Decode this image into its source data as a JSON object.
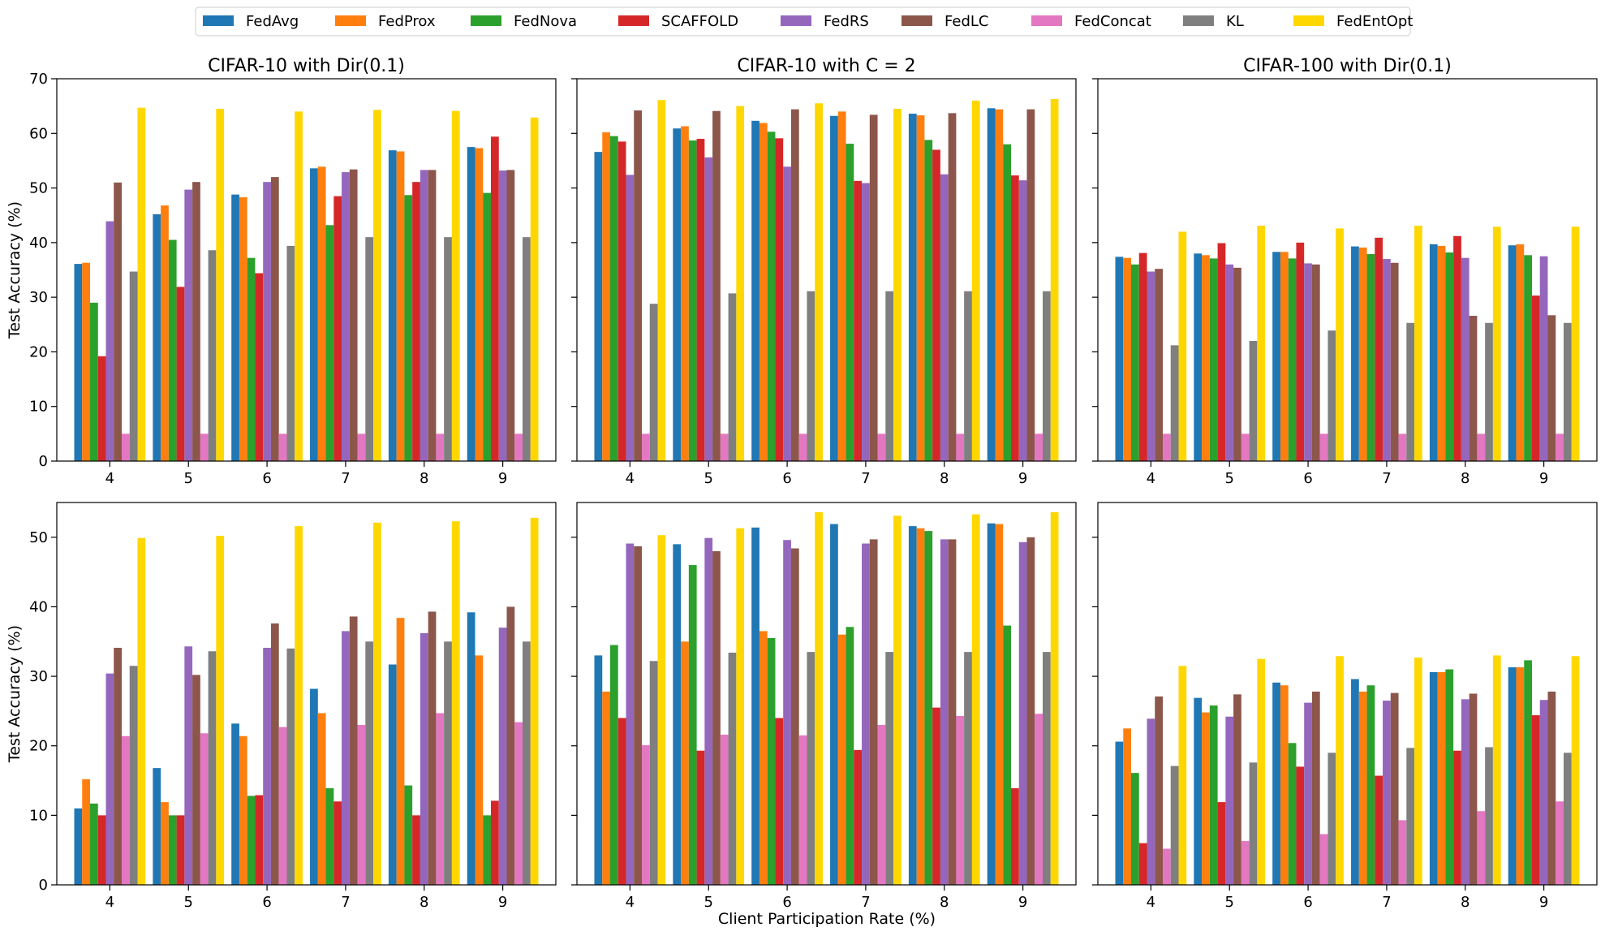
{
  "chart_data": {
    "type": "bar",
    "xlabel": "Client Participation Rate (%)",
    "ylabel": "Test Accuracy (%)",
    "legend_position": "top-center",
    "series": [
      {
        "name": "FedAvg",
        "color": "#1f77b4"
      },
      {
        "name": "FedProx",
        "color": "#ff7f0e"
      },
      {
        "name": "FedNova",
        "color": "#2ca02c"
      },
      {
        "name": "SCAFFOLD",
        "color": "#d62728"
      },
      {
        "name": "FedRS",
        "color": "#9467bd"
      },
      {
        "name": "FedLC",
        "color": "#8c564b"
      },
      {
        "name": "FedConcat",
        "color": "#e377c2"
      },
      {
        "name": "KL",
        "color": "#7f7f7f"
      },
      {
        "name": "FedEntOpt",
        "color": "#ffd700"
      }
    ],
    "categories": [
      "4",
      "5",
      "6",
      "7",
      "8",
      "9"
    ],
    "column_titles": [
      "CIFAR-10 with Dir(0.1)",
      "CIFAR-10 with C = 2",
      "CIFAR-100 with Dir(0.1)"
    ],
    "rows": [
      {
        "ylim": [
          0,
          70
        ],
        "yticks": [
          0,
          10,
          20,
          30,
          40,
          50,
          60,
          70
        ]
      },
      {
        "ylim": [
          0,
          55
        ],
        "yticks": [
          0,
          10,
          20,
          30,
          40,
          50
        ]
      }
    ],
    "panels": [
      {
        "title": "CIFAR-10 with Dir(0.1)",
        "values": [
          [
            36.1,
            45.2,
            48.8,
            53.6,
            56.9,
            57.5
          ],
          [
            36.3,
            46.8,
            48.3,
            53.9,
            56.7,
            57.3
          ],
          [
            29.0,
            40.5,
            37.2,
            43.2,
            48.7,
            49.1
          ],
          [
            19.2,
            31.9,
            34.4,
            48.5,
            51.1,
            59.4
          ],
          [
            43.9,
            49.7,
            51.1,
            52.9,
            53.3,
            53.2
          ],
          [
            51.0,
            51.1,
            52.0,
            53.4,
            53.3,
            53.3
          ],
          [
            5.0,
            5.0,
            5.0,
            5.0,
            5.0,
            5.0
          ],
          [
            34.7,
            38.6,
            39.4,
            41.0,
            41.0,
            41.0
          ],
          [
            64.7,
            64.5,
            64.0,
            64.3,
            64.1,
            62.9
          ]
        ]
      },
      {
        "title": "CIFAR-10 with C = 2",
        "values": [
          [
            56.6,
            60.9,
            62.3,
            63.2,
            63.6,
            64.6
          ],
          [
            60.2,
            61.3,
            61.9,
            64.0,
            63.3,
            64.4
          ],
          [
            59.5,
            58.7,
            60.3,
            58.1,
            58.8,
            58.0
          ],
          [
            58.5,
            59.0,
            59.1,
            51.3,
            57.0,
            52.3
          ],
          [
            52.4,
            55.6,
            53.9,
            50.9,
            52.5,
            51.4
          ],
          [
            64.2,
            64.1,
            64.4,
            63.4,
            63.7,
            64.4
          ],
          [
            5.0,
            5.0,
            5.0,
            5.0,
            5.0,
            5.0
          ],
          [
            28.8,
            30.7,
            31.1,
            31.1,
            31.1,
            31.1
          ],
          [
            66.1,
            65.0,
            65.5,
            64.5,
            66.0,
            66.3
          ]
        ]
      },
      {
        "title": "CIFAR-100 with Dir(0.1)",
        "values": [
          [
            37.4,
            38.0,
            38.3,
            39.3,
            39.7,
            39.5
          ],
          [
            37.2,
            37.7,
            38.3,
            39.1,
            39.4,
            39.7
          ],
          [
            36.0,
            37.1,
            37.1,
            37.9,
            38.2,
            37.7
          ],
          [
            38.1,
            39.9,
            40.0,
            40.9,
            41.2,
            30.3
          ],
          [
            34.7,
            36.0,
            36.2,
            37.0,
            37.2,
            37.5
          ],
          [
            35.2,
            35.4,
            36.0,
            36.3,
            26.6,
            26.7
          ],
          [
            5.0,
            5.0,
            5.0,
            5.0,
            5.0,
            5.0
          ],
          [
            21.2,
            22.0,
            23.9,
            25.3,
            25.3,
            25.3
          ],
          [
            42.0,
            43.1,
            42.6,
            43.1,
            42.9,
            42.9
          ]
        ]
      },
      {
        "title": "",
        "values": [
          [
            11.0,
            16.8,
            23.2,
            28.2,
            31.7,
            39.2
          ],
          [
            15.2,
            11.9,
            21.4,
            24.7,
            38.4,
            33.0
          ],
          [
            11.7,
            10.0,
            12.8,
            13.9,
            14.3,
            10.0
          ],
          [
            10.0,
            10.0,
            12.9,
            12.0,
            10.0,
            12.1
          ],
          [
            30.4,
            34.3,
            34.1,
            36.5,
            36.2,
            37.0
          ],
          [
            34.1,
            30.2,
            37.6,
            38.6,
            39.3,
            40.0
          ],
          [
            21.4,
            21.8,
            22.7,
            23.0,
            24.7,
            23.4
          ],
          [
            31.5,
            33.6,
            34.0,
            35.0,
            35.0,
            35.0
          ],
          [
            49.9,
            50.2,
            51.6,
            52.1,
            52.3,
            52.8
          ]
        ]
      },
      {
        "title": "",
        "values": [
          [
            33.0,
            49.0,
            51.4,
            51.9,
            51.6,
            52.0
          ],
          [
            27.8,
            35.0,
            36.5,
            36.0,
            51.3,
            51.9
          ],
          [
            34.5,
            46.0,
            35.5,
            37.1,
            50.9,
            37.3
          ],
          [
            24.0,
            19.3,
            24.0,
            19.4,
            25.5,
            13.9
          ],
          [
            49.1,
            49.9,
            49.6,
            49.1,
            49.7,
            49.3
          ],
          [
            48.7,
            48.0,
            48.4,
            49.7,
            49.7,
            50.0
          ],
          [
            20.1,
            21.6,
            21.5,
            23.0,
            24.3,
            24.6
          ],
          [
            32.2,
            33.4,
            33.5,
            33.5,
            33.5,
            33.5
          ],
          [
            50.3,
            51.3,
            53.6,
            53.1,
            53.3,
            53.6
          ]
        ]
      },
      {
        "title": "",
        "values": [
          [
            20.6,
            26.9,
            29.1,
            29.6,
            30.6,
            31.3
          ],
          [
            22.5,
            24.8,
            28.7,
            27.8,
            30.6,
            31.3
          ],
          [
            16.1,
            25.8,
            20.4,
            28.7,
            31.0,
            32.3
          ],
          [
            6.0,
            11.9,
            17.0,
            15.7,
            19.3,
            24.4
          ],
          [
            23.9,
            24.2,
            26.2,
            26.5,
            26.7,
            26.6
          ],
          [
            27.1,
            27.4,
            27.8,
            27.6,
            27.5,
            27.8
          ],
          [
            5.2,
            6.3,
            7.3,
            9.3,
            10.6,
            12.0
          ],
          [
            17.1,
            17.6,
            19.0,
            19.7,
            19.8,
            19.0
          ],
          [
            31.5,
            32.5,
            32.9,
            32.7,
            33.0,
            32.9
          ]
        ]
      }
    ]
  }
}
